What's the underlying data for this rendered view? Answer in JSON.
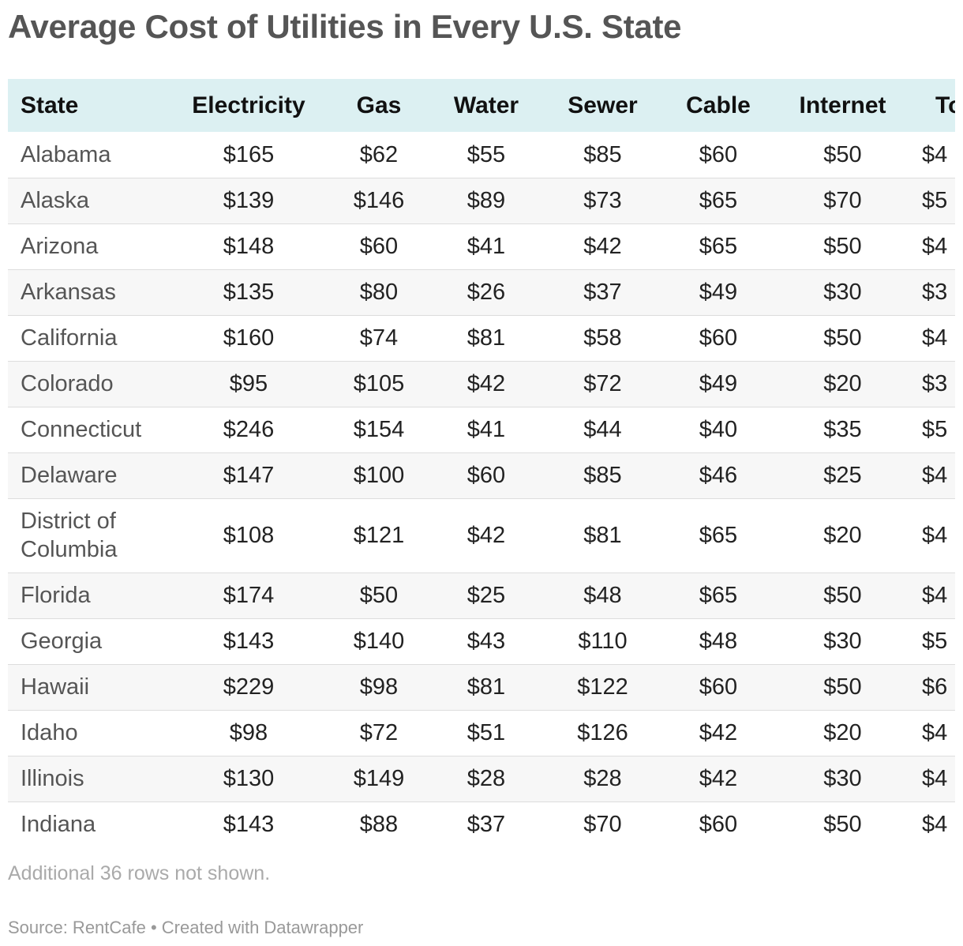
{
  "title": "Average Cost of Utilities in Every U.S. State",
  "chart_data": {
    "type": "table",
    "title": "Average Cost of Utilities in Every U.S. State",
    "columns": [
      "State",
      "Electricity",
      "Gas",
      "Water",
      "Sewer",
      "Cable",
      "Internet",
      "To"
    ],
    "rows": [
      {
        "state": "Alabama",
        "electricity": "$165",
        "gas": "$62",
        "water": "$55",
        "sewer": "$85",
        "cable": "$60",
        "internet": "$50",
        "total": "$4"
      },
      {
        "state": "Alaska",
        "electricity": "$139",
        "gas": "$146",
        "water": "$89",
        "sewer": "$73",
        "cable": "$65",
        "internet": "$70",
        "total": "$5"
      },
      {
        "state": "Arizona",
        "electricity": "$148",
        "gas": "$60",
        "water": "$41",
        "sewer": "$42",
        "cable": "$65",
        "internet": "$50",
        "total": "$4"
      },
      {
        "state": "Arkansas",
        "electricity": "$135",
        "gas": "$80",
        "water": "$26",
        "sewer": "$37",
        "cable": "$49",
        "internet": "$30",
        "total": "$3"
      },
      {
        "state": "California",
        "electricity": "$160",
        "gas": "$74",
        "water": "$81",
        "sewer": "$58",
        "cable": "$60",
        "internet": "$50",
        "total": "$4"
      },
      {
        "state": "Colorado",
        "electricity": "$95",
        "gas": "$105",
        "water": "$42",
        "sewer": "$72",
        "cable": "$49",
        "internet": "$20",
        "total": "$3"
      },
      {
        "state": "Connecticut",
        "electricity": "$246",
        "gas": "$154",
        "water": "$41",
        "sewer": "$44",
        "cable": "$40",
        "internet": "$35",
        "total": "$5"
      },
      {
        "state": "Delaware",
        "electricity": "$147",
        "gas": "$100",
        "water": "$60",
        "sewer": "$85",
        "cable": "$46",
        "internet": "$25",
        "total": "$4"
      },
      {
        "state": "District of Columbia",
        "electricity": "$108",
        "gas": "$121",
        "water": "$42",
        "sewer": "$81",
        "cable": "$65",
        "internet": "$20",
        "total": "$4"
      },
      {
        "state": "Florida",
        "electricity": "$174",
        "gas": "$50",
        "water": "$25",
        "sewer": "$48",
        "cable": "$65",
        "internet": "$50",
        "total": "$4"
      },
      {
        "state": "Georgia",
        "electricity": "$143",
        "gas": "$140",
        "water": "$43",
        "sewer": "$110",
        "cable": "$48",
        "internet": "$30",
        "total": "$5"
      },
      {
        "state": "Hawaii",
        "electricity": "$229",
        "gas": "$98",
        "water": "$81",
        "sewer": "$122",
        "cable": "$60",
        "internet": "$50",
        "total": "$6"
      },
      {
        "state": "Idaho",
        "electricity": "$98",
        "gas": "$72",
        "water": "$51",
        "sewer": "$126",
        "cable": "$42",
        "internet": "$20",
        "total": "$4"
      },
      {
        "state": "Illinois",
        "electricity": "$130",
        "gas": "$149",
        "water": "$28",
        "sewer": "$28",
        "cable": "$42",
        "internet": "$30",
        "total": "$4"
      },
      {
        "state": "Indiana",
        "electricity": "$143",
        "gas": "$88",
        "water": "$37",
        "sewer": "$70",
        "cable": "$60",
        "internet": "$50",
        "total": "$4"
      }
    ]
  },
  "footer": {
    "note": "Additional 36 rows not shown.",
    "source": "Source: RentCafe • Created with Datawrapper"
  }
}
